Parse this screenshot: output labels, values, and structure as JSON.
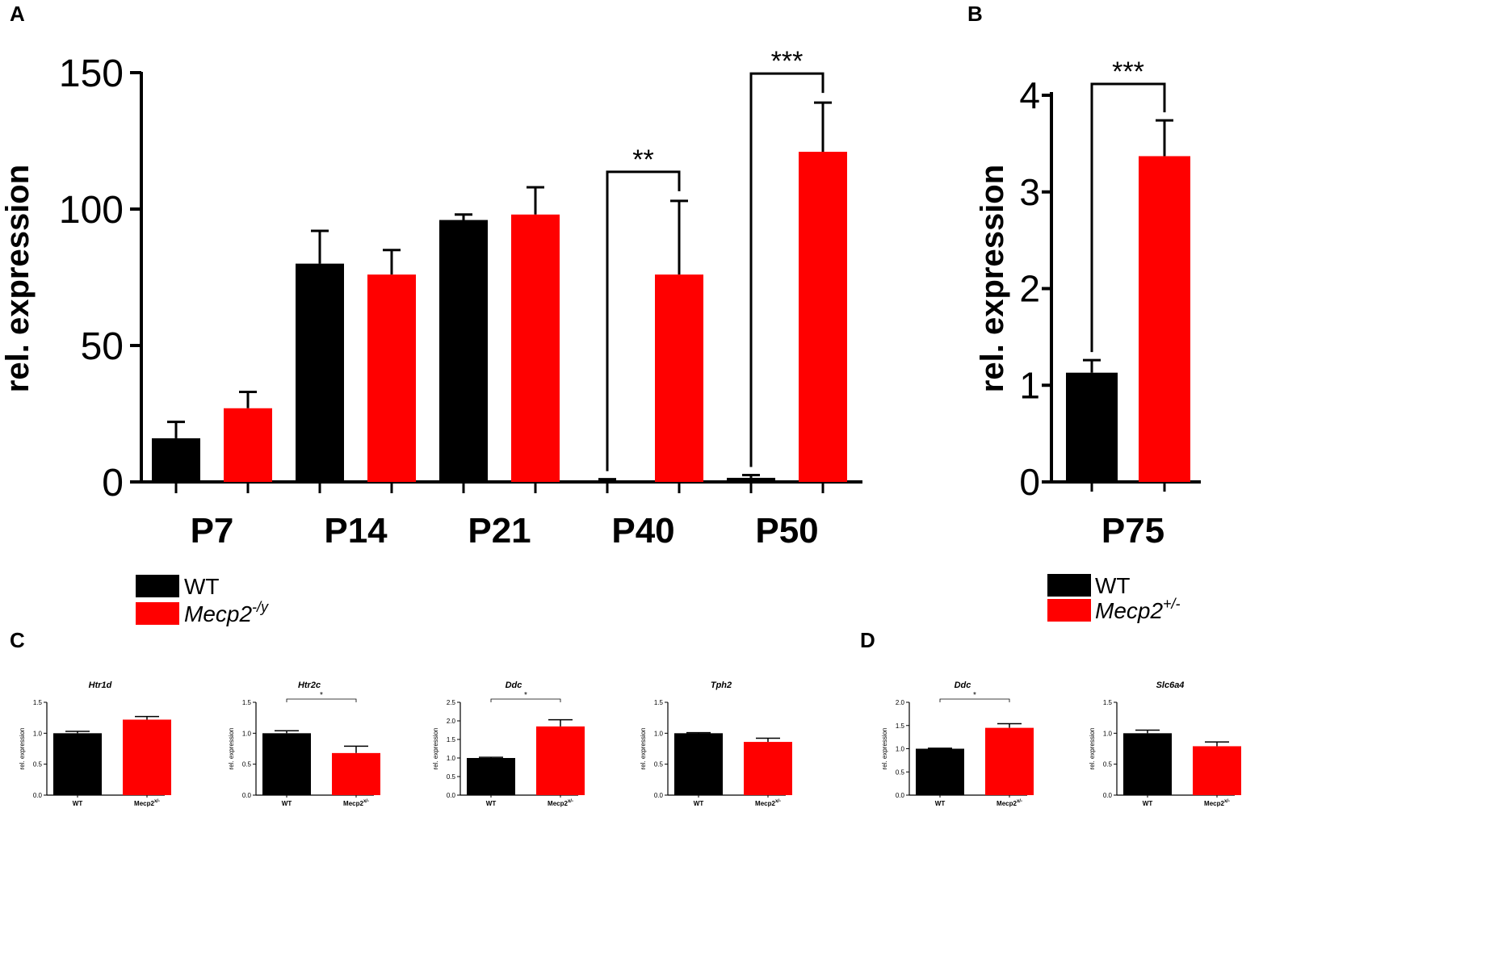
{
  "colors": {
    "wt": "#000000",
    "mutant": "#ff0000"
  },
  "panel_labels": [
    "A",
    "B",
    "C",
    "D"
  ],
  "chart_data": [
    {
      "id": "A",
      "type": "bar",
      "panel": "A",
      "ylabel": "rel. expression",
      "ylim": [
        0,
        150
      ],
      "yticks": [
        "0",
        "50",
        "100",
        "150"
      ],
      "categories": [
        "P7",
        "P14",
        "P21",
        "P40",
        "P50"
      ],
      "series": [
        {
          "name": "WT",
          "color": "#000000",
          "values": [
            16,
            80,
            96,
            0.5,
            1.5
          ],
          "errors": [
            6,
            12,
            2,
            0.5,
            1
          ]
        },
        {
          "name": "Mecp2-/y",
          "color": "#ff0000",
          "values": [
            27,
            76,
            98,
            76,
            121
          ],
          "errors": [
            6,
            9,
            10,
            27,
            18
          ]
        }
      ],
      "significance": [
        {
          "category": 3,
          "label": "**"
        },
        {
          "category": 4,
          "label": "***"
        }
      ],
      "legend": [
        {
          "label": "WT",
          "sup": ""
        },
        {
          "label": "Mecp2",
          "sup": "-/y"
        }
      ]
    },
    {
      "id": "B",
      "type": "bar",
      "panel": "B",
      "ylabel": "rel. expression",
      "ylim": [
        0,
        4
      ],
      "yticks": [
        "0",
        "1",
        "2",
        "3",
        "4"
      ],
      "categories": [
        "P75"
      ],
      "series": [
        {
          "name": "WT",
          "color": "#000000",
          "values": [
            1.13
          ],
          "errors": [
            0.13
          ]
        },
        {
          "name": "Mecp2+/-",
          "color": "#ff0000",
          "values": [
            3.37
          ],
          "errors": [
            0.37
          ]
        }
      ],
      "significance": [
        {
          "category": 0,
          "label": "***"
        }
      ],
      "legend": [
        {
          "label": "WT",
          "sup": ""
        },
        {
          "label": "Mecp2",
          "sup": "+/-"
        }
      ]
    },
    {
      "id": "C1",
      "type": "bar",
      "panel": "C",
      "title": "Htr1d",
      "ylabel": "rel. expression",
      "ylim": [
        0,
        1.5
      ],
      "yticks": [
        "0.0",
        "0.5",
        "1.0",
        "1.5"
      ],
      "categories": [
        "WT",
        "Mecp2"
      ],
      "cat_sup": [
        "",
        "x/-"
      ],
      "values": [
        1.0,
        1.22
      ],
      "errors": [
        0.03,
        0.05
      ],
      "significance": ""
    },
    {
      "id": "C2",
      "type": "bar",
      "panel": "C",
      "title": "Htr2c",
      "ylabel": "rel. expression",
      "ylim": [
        0,
        1.5
      ],
      "yticks": [
        "0.0",
        "0.5",
        "1.0",
        "1.5"
      ],
      "categories": [
        "WT",
        "Mecp2"
      ],
      "cat_sup": [
        "",
        "x/-"
      ],
      "values": [
        1.0,
        0.68
      ],
      "errors": [
        0.04,
        0.11
      ],
      "significance": "*"
    },
    {
      "id": "C3",
      "type": "bar",
      "panel": "C",
      "title": "Ddc",
      "ylabel": "rel. expression",
      "ylim": [
        0,
        2.5
      ],
      "yticks": [
        "0.0",
        "0.5",
        "1.0",
        "1.5",
        "2.0",
        "2.5"
      ],
      "categories": [
        "WT",
        "Mecp2"
      ],
      "cat_sup": [
        "",
        "x/-"
      ],
      "values": [
        1.0,
        1.85
      ],
      "errors": [
        0.02,
        0.18
      ],
      "significance": "*"
    },
    {
      "id": "C4",
      "type": "bar",
      "panel": "C",
      "title": "Tph2",
      "ylabel": "rel. expression",
      "ylim": [
        0,
        1.5
      ],
      "yticks": [
        "0.0",
        "0.5",
        "1.0",
        "1.5"
      ],
      "categories": [
        "WT",
        "Mecp2"
      ],
      "cat_sup": [
        "",
        "x/-"
      ],
      "values": [
        1.0,
        0.86
      ],
      "errors": [
        0.01,
        0.06
      ],
      "significance": ""
    },
    {
      "id": "D1",
      "type": "bar",
      "panel": "D",
      "title": "Ddc",
      "ylabel": "rel. expression",
      "ylim": [
        0,
        2.0
      ],
      "yticks": [
        "0.0",
        "0.5",
        "1.0",
        "1.5",
        "2.0"
      ],
      "categories": [
        "WT",
        "Mecp2"
      ],
      "cat_sup": [
        "",
        "x/-"
      ],
      "values": [
        1.0,
        1.45
      ],
      "errors": [
        0.01,
        0.09
      ],
      "significance": "*"
    },
    {
      "id": "D2",
      "type": "bar",
      "panel": "D",
      "title": "Slc6a4",
      "ylabel": "rel. expression",
      "ylim": [
        0,
        1.5
      ],
      "yticks": [
        "0.0",
        "0.5",
        "1.0",
        "1.5"
      ],
      "categories": [
        "WT",
        "Mecp2"
      ],
      "cat_sup": [
        "",
        "x/-"
      ],
      "values": [
        1.0,
        0.79
      ],
      "errors": [
        0.05,
        0.07
      ],
      "significance": ""
    }
  ]
}
